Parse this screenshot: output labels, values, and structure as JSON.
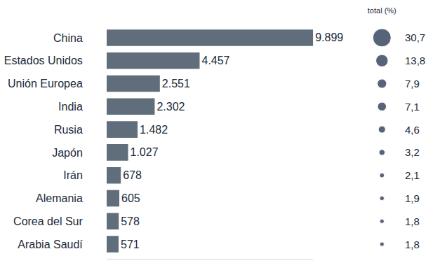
{
  "chart_data": {
    "type": "bar",
    "orientation": "horizontal",
    "categories": [
      "China",
      "Estados Unidos",
      "Unión Europea",
      "India",
      "Rusia",
      "Japón",
      "Irán",
      "Alemania",
      "Corea del Sur",
      "Arabia Saudí"
    ],
    "values": [
      9899,
      4457,
      2551,
      2302,
      1482,
      1027,
      678,
      605,
      578,
      571
    ],
    "value_labels": [
      "9.899",
      "4.457",
      "2.551",
      "2.302",
      "1.482",
      "1.027",
      "678",
      "605",
      "578",
      "571"
    ],
    "data_labels": true,
    "color": "#5f6e7a",
    "xlim": [
      0,
      9899
    ],
    "xticks": [],
    "tick_labels": "y",
    "grid": false,
    "share": {
      "title": "total (%)",
      "values": [
        30.7,
        13.8,
        7.9,
        7.1,
        4.6,
        3.2,
        2.1,
        1.9,
        1.8,
        1.8
      ],
      "value_labels": [
        "30,7",
        "13,8",
        "7,9",
        "7,1",
        "4,6",
        "3,2",
        "2,1",
        "1,9",
        "1,8",
        "1,8"
      ],
      "color": "#0f2240",
      "marker": "circle"
    }
  }
}
